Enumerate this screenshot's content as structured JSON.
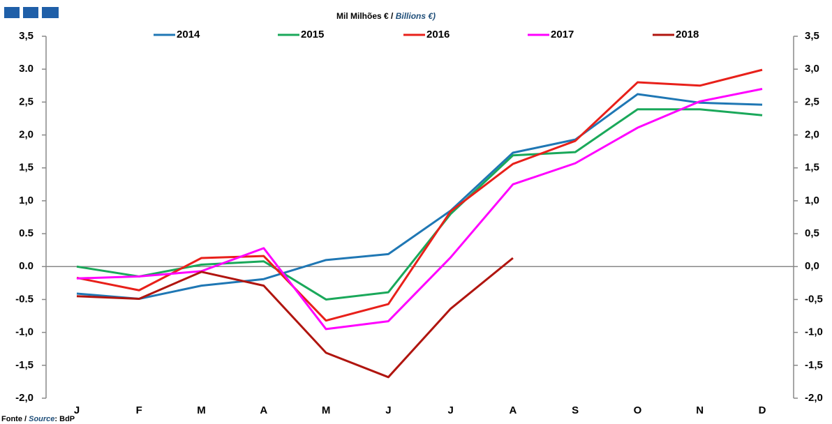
{
  "chart_data": {
    "type": "line",
    "title": "Mil Milhões € / ",
    "title_italic": "Billions €)",
    "source": {
      "pt": "Fonte / ",
      "en": "Source",
      "rest": ": BdP"
    },
    "categories": [
      "J",
      "F",
      "M",
      "A",
      "M",
      "J",
      "J",
      "A",
      "S",
      "O",
      "N",
      "D"
    ],
    "series": [
      {
        "name": "2014",
        "color": "#1f77b4",
        "values": [
          -0.41,
          -0.49,
          -0.29,
          -0.19,
          0.1,
          0.19,
          0.85,
          1.73,
          1.93,
          2.62,
          2.49,
          2.46
        ]
      },
      {
        "name": "2015",
        "color": "#1aa85a",
        "values": [
          0.0,
          -0.15,
          0.03,
          0.08,
          -0.5,
          -0.39,
          0.8,
          1.69,
          1.74,
          2.39,
          2.39,
          2.3
        ]
      },
      {
        "name": "2016",
        "color": "#e8201a",
        "values": [
          -0.17,
          -0.36,
          0.13,
          0.16,
          -0.82,
          -0.57,
          0.84,
          1.56,
          1.91,
          2.8,
          2.75,
          2.99
        ]
      },
      {
        "name": "2017",
        "color": "#ff00ff",
        "values": [
          -0.18,
          -0.15,
          -0.07,
          0.28,
          -0.95,
          -0.83,
          0.14,
          1.25,
          1.57,
          2.11,
          2.51,
          2.7
        ]
      },
      {
        "name": "2018",
        "color": "#b0150f",
        "values": [
          -0.45,
          -0.49,
          -0.08,
          -0.29,
          -1.31,
          -1.68,
          -0.64,
          0.13,
          null,
          null,
          null,
          null
        ]
      }
    ],
    "ylim": [
      -2.0,
      3.5
    ],
    "yticks": [
      {
        "value": 3.5,
        "label": "3,5"
      },
      {
        "value": 3.0,
        "label": "3.0"
      },
      {
        "value": 2.5,
        "label": "2,5"
      },
      {
        "value": 2.0,
        "label": "2,0"
      },
      {
        "value": 1.5,
        "label": "1,5"
      },
      {
        "value": 1.0,
        "label": "1,0"
      },
      {
        "value": 0.5,
        "label": "0.5"
      },
      {
        "value": 0.0,
        "label": "0.0"
      },
      {
        "value": -0.5,
        "label": "-0.5"
      },
      {
        "value": -1.0,
        "label": "-1,0"
      },
      {
        "value": -1.5,
        "label": "-1,5"
      },
      {
        "value": -2.0,
        "label": "-2,0"
      }
    ],
    "y2lim": [
      -2.0,
      3.5
    ],
    "y2ticks": [
      {
        "value": 3.5,
        "label": "3,5"
      },
      {
        "value": 3.0,
        "label": "3,0"
      },
      {
        "value": 2.5,
        "label": "2,5"
      },
      {
        "value": 2.0,
        "label": "2,0"
      },
      {
        "value": 1.5,
        "label": "1,5"
      },
      {
        "value": 1.0,
        "label": "1,0"
      },
      {
        "value": 0.5,
        "label": "0,5"
      },
      {
        "value": 0.0,
        "label": "0,0"
      },
      {
        "value": -0.5,
        "label": "-0,5"
      },
      {
        "value": -1.0,
        "label": "-1,0"
      },
      {
        "value": -1.5,
        "label": "-1,5"
      },
      {
        "value": -2.0,
        "label": "-2,0"
      }
    ],
    "legend": "top",
    "grid": false
  }
}
